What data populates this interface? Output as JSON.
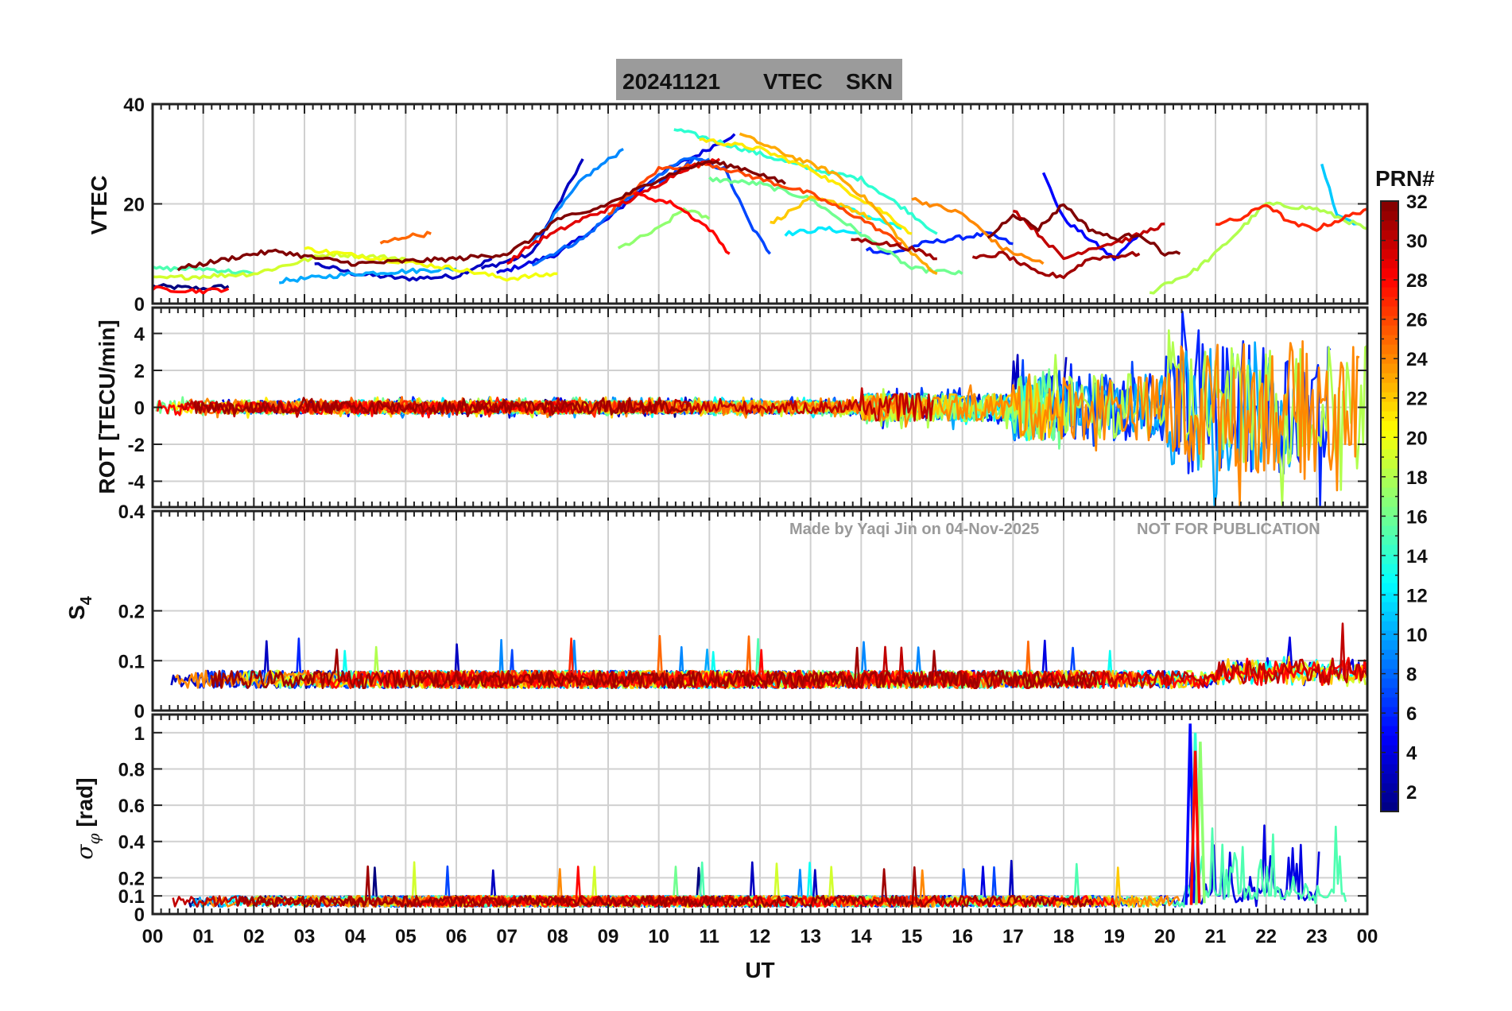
{
  "chart_data": {
    "type": "line",
    "title": {
      "date": "20241121",
      "quantity": "VTEC",
      "station": "SKN"
    },
    "x_label": "UT",
    "x_ticks": [
      "00",
      "01",
      "02",
      "03",
      "04",
      "05",
      "06",
      "07",
      "08",
      "09",
      "10",
      "11",
      "12",
      "13",
      "14",
      "15",
      "16",
      "17",
      "18",
      "19",
      "20",
      "21",
      "22",
      "23",
      "00"
    ],
    "x_range_hours": [
      0,
      24
    ],
    "panels": [
      {
        "id": "vtec",
        "ylabel": "VTEC",
        "ylim": [
          0,
          40
        ],
        "yticks": [
          0,
          20,
          40
        ],
        "tick_labels": [
          "0",
          "20",
          "40"
        ],
        "series": [
          {
            "prn": 1,
            "points": [
              [
                0,
                3.5
              ],
              [
                1,
                3
              ],
              [
                1.5,
                3.5
              ]
            ]
          },
          {
            "prn": 3,
            "points": [
              [
                3.2,
                8
              ],
              [
                4,
                6
              ],
              [
                5,
                5
              ],
              [
                6,
                5.5
              ],
              [
                6.7,
                9
              ]
            ]
          },
          {
            "prn": 3,
            "points": [
              [
                6.5,
                7
              ],
              [
                7.5,
                10
              ],
              [
                8.5,
                29
              ]
            ]
          },
          {
            "prn": 4,
            "points": [
              [
                6.8,
                6
              ],
              [
                8,
                10
              ],
              [
                9,
                17
              ],
              [
                10,
                26
              ],
              [
                10.8,
                30
              ],
              [
                11.5,
                34
              ]
            ]
          },
          {
            "prn": 5,
            "points": [
              [
                17.6,
                26
              ],
              [
                18,
                17
              ],
              [
                18.5,
                13
              ],
              [
                19,
                9
              ],
              [
                19.5,
                14
              ]
            ]
          },
          {
            "prn": 6,
            "points": [
              [
                14.1,
                11
              ],
              [
                14.6,
                10
              ],
              [
                15.2,
                12
              ],
              [
                15.8,
                13
              ],
              [
                16.5,
                14
              ],
              [
                17,
                12
              ]
            ]
          },
          {
            "prn": 7,
            "points": [
              [
                10,
                24
              ],
              [
                10.7,
                29
              ],
              [
                11.3,
                27
              ],
              [
                11.8,
                16
              ],
              [
                12.2,
                10
              ]
            ]
          },
          {
            "prn": 8,
            "points": [
              [
                7.5,
                8
              ],
              [
                8.5,
                13
              ],
              [
                9.5,
                22
              ],
              [
                10.5,
                29
              ],
              [
                11,
                29
              ]
            ]
          },
          {
            "prn": 9,
            "points": [
              [
                7.5,
                12
              ],
              [
                8.5,
                25
              ],
              [
                9.3,
                31
              ]
            ]
          },
          {
            "prn": 10,
            "points": [
              [
                2.5,
                4.5
              ],
              [
                4,
                6
              ],
              [
                6,
                7
              ]
            ]
          },
          {
            "prn": 11,
            "points": [
              [
                23.1,
                28
              ],
              [
                23.4,
                18
              ],
              [
                23.8,
                16
              ]
            ]
          },
          {
            "prn": 12,
            "points": [
              [
                12.5,
                14
              ],
              [
                13.3,
                15
              ],
              [
                14,
                14
              ]
            ]
          },
          {
            "prn": 13,
            "points": [
              [
                13.5,
                20
              ],
              [
                14,
                18
              ],
              [
                14.8,
                15
              ]
            ]
          },
          {
            "prn": 14,
            "points": [
              [
                10.3,
                35
              ],
              [
                11,
                33
              ],
              [
                12,
                30
              ],
              [
                13,
                27
              ],
              [
                14,
                25
              ],
              [
                15,
                18
              ],
              [
                15.5,
                14
              ]
            ]
          },
          {
            "prn": 15,
            "points": [
              [
                0,
                7
              ],
              [
                1,
                7
              ],
              [
                2,
                6
              ]
            ]
          },
          {
            "prn": 16,
            "points": [
              [
                11,
                25
              ],
              [
                12,
                24
              ],
              [
                13,
                21
              ],
              [
                14,
                14
              ],
              [
                15,
                7
              ],
              [
                16,
                6
              ]
            ]
          },
          {
            "prn": 17,
            "points": [
              [
                9.2,
                11
              ],
              [
                10,
                15
              ],
              [
                10.5,
                19
              ],
              [
                11,
                17
              ]
            ]
          },
          {
            "prn": 18,
            "points": [
              [
                19.7,
                2
              ],
              [
                20,
                4
              ],
              [
                20.5,
                6
              ],
              [
                21,
                10
              ],
              [
                22,
                20
              ],
              [
                23,
                19
              ],
              [
                24,
                15
              ]
            ]
          },
          {
            "prn": 19,
            "points": [
              [
                0,
                5
              ],
              [
                2,
                6
              ],
              [
                3.5,
                10
              ],
              [
                5,
                9
              ]
            ]
          },
          {
            "prn": 20,
            "points": [
              [
                3,
                11
              ],
              [
                4.5,
                9
              ],
              [
                6,
                7
              ],
              [
                7,
                5
              ],
              [
                8,
                6
              ]
            ]
          },
          {
            "prn": 21,
            "points": [
              [
                10.8,
                33
              ],
              [
                12,
                31
              ],
              [
                13,
                27
              ],
              [
                14,
                21
              ],
              [
                14.5,
                18
              ],
              [
                15,
                14
              ]
            ]
          },
          {
            "prn": 22,
            "points": [
              [
                12.2,
                16
              ],
              [
                13,
                21
              ],
              [
                13.6,
                20
              ],
              [
                14.2,
                17
              ]
            ]
          },
          {
            "prn": 23,
            "points": [
              [
                11.6,
                34
              ],
              [
                12.5,
                30
              ],
              [
                13.5,
                26
              ],
              [
                14.2,
                20
              ],
              [
                15,
                10
              ],
              [
                15.5,
                6
              ]
            ]
          },
          {
            "prn": 24,
            "points": [
              [
                15,
                21
              ],
              [
                16,
                18
              ],
              [
                16.8,
                11
              ],
              [
                17.6,
                8
              ]
            ]
          },
          {
            "prn": 25,
            "points": [
              [
                4.5,
                12
              ],
              [
                5,
                13.5
              ],
              [
                5.5,
                14
              ]
            ]
          },
          {
            "prn": 26,
            "points": [
              [
                9,
                18
              ],
              [
                10,
                27
              ],
              [
                11,
                28
              ],
              [
                12,
                25
              ],
              [
                13,
                22
              ],
              [
                14,
                17
              ],
              [
                14.8,
                12
              ]
            ]
          },
          {
            "prn": 27,
            "points": [
              [
                21,
                16
              ],
              [
                21.5,
                17
              ],
              [
                22,
                20
              ],
              [
                22.5,
                16
              ],
              [
                23,
                15
              ],
              [
                24,
                19
              ]
            ]
          },
          {
            "prn": 28,
            "points": [
              [
                0,
                3
              ],
              [
                1,
                2.5
              ],
              [
                1.5,
                3
              ]
            ]
          },
          {
            "prn": 28,
            "points": [
              [
                9.5,
                22
              ],
              [
                10.3,
                20
              ],
              [
                11,
                15
              ],
              [
                11.4,
                10
              ]
            ]
          },
          {
            "prn": 29,
            "points": [
              [
                7,
                8
              ],
              [
                7.5,
                12
              ],
              [
                8.5,
                17
              ],
              [
                9.5,
                21
              ],
              [
                10.5,
                27
              ],
              [
                11.2,
                29
              ]
            ]
          },
          {
            "prn": 30,
            "points": [
              [
                17,
                19
              ],
              [
                17.5,
                14
              ],
              [
                18,
                9
              ],
              [
                18.5,
                11
              ],
              [
                19.3,
                13
              ],
              [
                20,
                16
              ]
            ]
          },
          {
            "prn": 31,
            "points": [
              [
                16.2,
                9
              ],
              [
                16.8,
                10
              ],
              [
                17.5,
                6
              ],
              [
                18,
                5.5
              ],
              [
                18.5,
                9
              ],
              [
                19.5,
                10
              ]
            ]
          },
          {
            "prn": 32,
            "points": [
              [
                0.5,
                7
              ],
              [
                1,
                8
              ],
              [
                2,
                10
              ],
              [
                2.5,
                10.5
              ],
              [
                3,
                9.5
              ],
              [
                4,
                8
              ],
              [
                5,
                8.5
              ],
              [
                6,
                9
              ],
              [
                7,
                10
              ],
              [
                7.5,
                13
              ],
              [
                8,
                17
              ],
              [
                8.5,
                18
              ],
              [
                9,
                20
              ],
              [
                10,
                25
              ],
              [
                10.5,
                27
              ],
              [
                11,
                28.5
              ],
              [
                11.7,
                27
              ],
              [
                12,
                26
              ],
              [
                12.5,
                24
              ]
            ]
          },
          {
            "prn": 31,
            "points": [
              [
                13.8,
                13
              ],
              [
                14.5,
                12
              ],
              [
                15,
                11
              ],
              [
                15.5,
                9
              ]
            ]
          },
          {
            "prn": 32,
            "points": [
              [
                16.5,
                13
              ],
              [
                17,
                18
              ],
              [
                17.5,
                15
              ],
              [
                18,
                20
              ],
              [
                18.5,
                15
              ],
              [
                19,
                13
              ],
              [
                19.5,
                14
              ],
              [
                20,
                10
              ],
              [
                20.3,
                10
              ]
            ]
          }
        ]
      },
      {
        "id": "rot",
        "ylabel": "ROT [TECU/min]",
        "ylim": [
          -5.4,
          5.4
        ],
        "yticks": [
          -4,
          -2,
          0,
          2,
          4
        ],
        "tick_labels": [
          "-4",
          "-2",
          "0",
          "2",
          "4"
        ],
        "overlay": "multi-PRN noise about 0, amplitude rising to about 5 after 17 UT"
      },
      {
        "id": "s4",
        "ylabel": "S4",
        "ylim": [
          0,
          0.4
        ],
        "yticks": [
          0,
          0.1,
          0.2,
          0.4
        ],
        "tick_labels": [
          "0",
          "0.1",
          "0.2",
          "0.4"
        ],
        "overlay": "multi-PRN noise between 0.03 and 0.18"
      },
      {
        "id": "sigphi",
        "ylabel": "σφ [rad]",
        "ylim": [
          0,
          1.1
        ],
        "yticks": [
          0,
          0.1,
          0.2,
          0.4,
          0.6,
          0.8,
          1
        ],
        "tick_labels": [
          "0",
          "0.1",
          "0.2",
          "0.4",
          "0.6",
          "0.8",
          "1"
        ],
        "overlay": "multi-PRN noise, spikes to 1.0 near 20.5 UT"
      }
    ],
    "colorbar": {
      "label": "PRN#",
      "range": [
        1,
        32
      ],
      "ticks": [
        "2",
        "4",
        "6",
        "8",
        "10",
        "12",
        "14",
        "16",
        "18",
        "20",
        "22",
        "24",
        "26",
        "28",
        "30",
        "32"
      ],
      "colormap": "jet"
    }
  },
  "watermark": {
    "credit": "Made by Yaqi Jin on 04-Nov-2025",
    "notice": "NOT FOR PUBLICATION"
  }
}
